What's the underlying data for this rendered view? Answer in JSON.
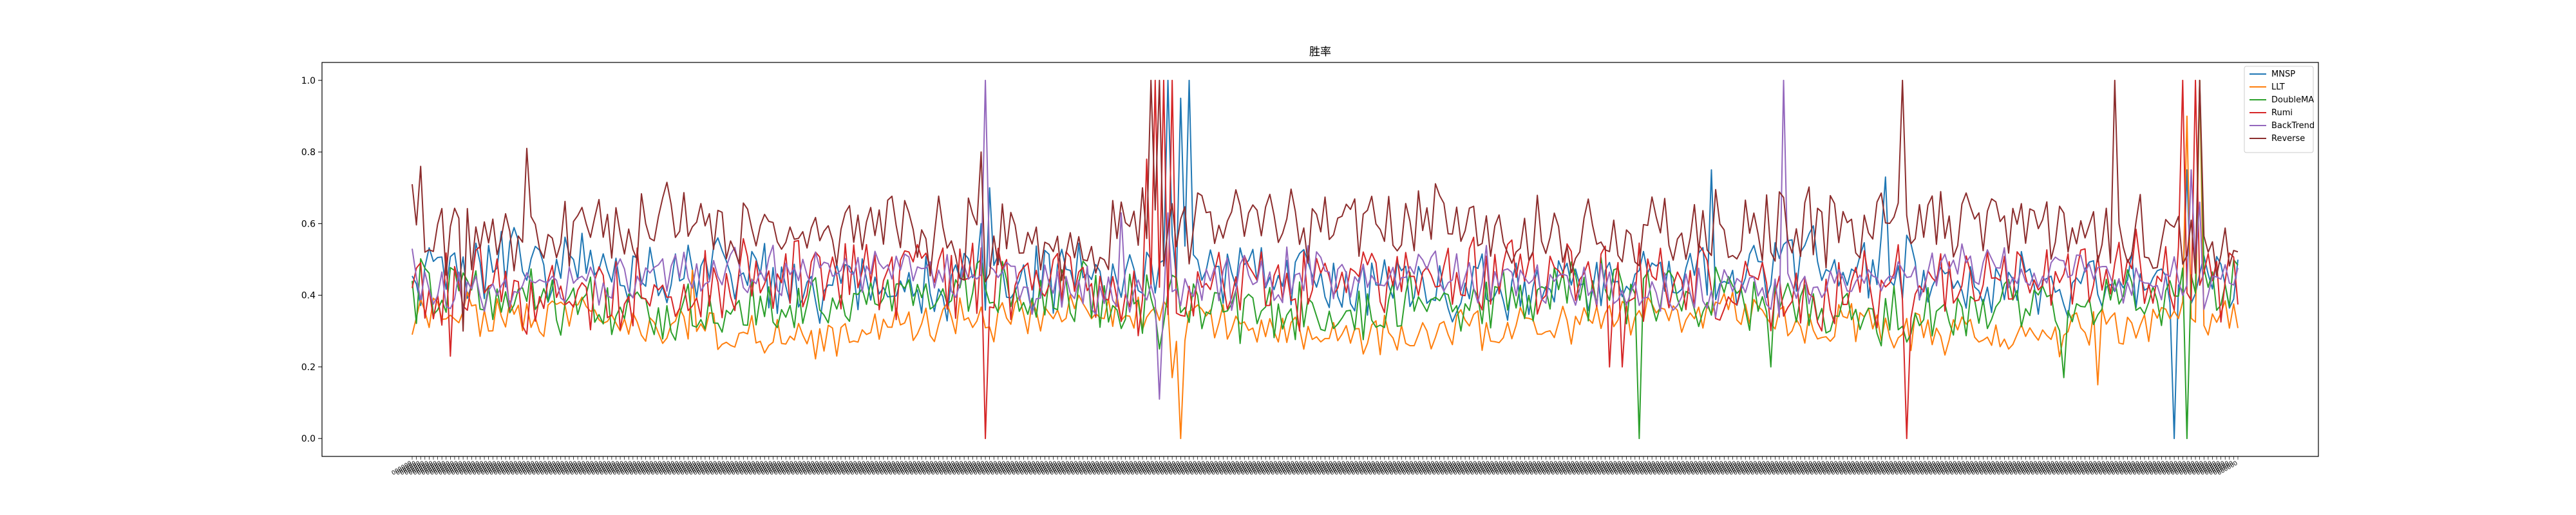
{
  "chart_data": {
    "type": "line",
    "title": "胜率",
    "xlabel": "",
    "ylabel": "",
    "ylim": [
      -0.05,
      1.05
    ],
    "yticks": [
      0.0,
      0.2,
      0.4,
      0.6,
      0.8,
      1.0
    ],
    "ytick_labels": [
      "0.0",
      "0.2",
      "0.4",
      "0.6",
      "0.8",
      "1.0"
    ],
    "x_count": 431,
    "xtick_label_text": "000000",
    "legend": {
      "placement": "top-right",
      "entries": [
        "MNSP",
        "LLT",
        "DoubleMA",
        "Rumi",
        "BackTrend",
        "Reverse"
      ]
    },
    "series": [
      {
        "name": "MNSP",
        "color": "#1f77b4",
        "baseline": 0.45,
        "noise": 0.08,
        "seed": 11,
        "spikes": [
          {
            "index": 134,
            "value": 0.6
          },
          {
            "index": 136,
            "value": 0.7
          },
          {
            "index": 173,
            "value": 0.52
          },
          {
            "index": 178,
            "value": 1.0
          },
          {
            "index": 181,
            "value": 0.95
          },
          {
            "index": 183,
            "value": 1.0
          },
          {
            "index": 306,
            "value": 0.75
          },
          {
            "index": 347,
            "value": 0.73
          },
          {
            "index": 415,
            "value": 0.0
          },
          {
            "index": 418,
            "value": 0.75
          }
        ]
      },
      {
        "name": "LLT",
        "color": "#ff7f0e",
        "baseline": 0.32,
        "noise": 0.05,
        "seed": 23,
        "spikes": [
          {
            "index": 0,
            "value": 0.29
          },
          {
            "index": 4,
            "value": 0.31
          },
          {
            "index": 18,
            "value": 0.3
          },
          {
            "index": 66,
            "value": 0.47
          },
          {
            "index": 137,
            "value": 0.27
          },
          {
            "index": 181,
            "value": 0.0
          },
          {
            "index": 179,
            "value": 0.17
          },
          {
            "index": 397,
            "value": 0.15
          },
          {
            "index": 418,
            "value": 0.9
          },
          {
            "index": 421,
            "value": 1.0
          }
        ]
      },
      {
        "name": "DoubleMA",
        "color": "#2ca02c",
        "baseline": 0.38,
        "noise": 0.07,
        "seed": 37,
        "spikes": [
          {
            "index": 0,
            "value": 0.44
          },
          {
            "index": 134,
            "value": 0.5
          },
          {
            "index": 176,
            "value": 0.25
          },
          {
            "index": 289,
            "value": 0.0
          },
          {
            "index": 320,
            "value": 0.2
          },
          {
            "index": 389,
            "value": 0.17
          },
          {
            "index": 418,
            "value": 0.0
          },
          {
            "index": 421,
            "value": 1.0
          }
        ]
      },
      {
        "name": "Rumi",
        "color": "#d62728",
        "baseline": 0.43,
        "noise": 0.09,
        "seed": 41,
        "spikes": [
          {
            "index": 0,
            "value": 0.42
          },
          {
            "index": 9,
            "value": 0.23
          },
          {
            "index": 135,
            "value": 0.0
          },
          {
            "index": 173,
            "value": 0.78
          },
          {
            "index": 175,
            "value": 1.0
          },
          {
            "index": 177,
            "value": 1.0
          },
          {
            "index": 179,
            "value": 1.0
          },
          {
            "index": 180,
            "value": 0.35
          },
          {
            "index": 282,
            "value": 0.2
          },
          {
            "index": 285,
            "value": 0.2
          },
          {
            "index": 352,
            "value": 0.0
          },
          {
            "index": 417,
            "value": 1.0
          },
          {
            "index": 420,
            "value": 1.0
          }
        ]
      },
      {
        "name": "BackTrend",
        "color": "#9467bd",
        "baseline": 0.44,
        "noise": 0.06,
        "seed": 53,
        "spikes": [
          {
            "index": 0,
            "value": 0.53
          },
          {
            "index": 135,
            "value": 1.0
          },
          {
            "index": 167,
            "value": 0.63
          },
          {
            "index": 176,
            "value": 0.11
          },
          {
            "index": 178,
            "value": 0.63
          },
          {
            "index": 323,
            "value": 1.0
          },
          {
            "index": 419,
            "value": 0.75
          },
          {
            "index": 421,
            "value": 0.66
          }
        ]
      },
      {
        "name": "Reverse",
        "color": "#8c2d2d",
        "baseline": 0.58,
        "noise": 0.09,
        "seed": 67,
        "spikes": [
          {
            "index": 0,
            "value": 0.71
          },
          {
            "index": 2,
            "value": 0.76
          },
          {
            "index": 12,
            "value": 0.3
          },
          {
            "index": 27,
            "value": 0.81
          },
          {
            "index": 134,
            "value": 0.8
          },
          {
            "index": 172,
            "value": 0.7
          },
          {
            "index": 174,
            "value": 1.0
          },
          {
            "index": 176,
            "value": 1.0
          },
          {
            "index": 351,
            "value": 1.0
          },
          {
            "index": 401,
            "value": 1.0
          },
          {
            "index": 421,
            "value": 1.0
          }
        ]
      }
    ]
  }
}
